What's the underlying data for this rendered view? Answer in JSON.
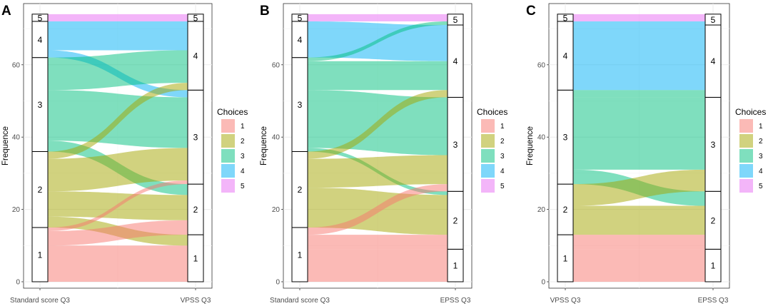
{
  "colors": {
    "1": "#F8766D",
    "2": "#A3A500",
    "3": "#00BF7D",
    "4": "#00B0F6",
    "5": "#E76BF3"
  },
  "legend": {
    "title": "Choices",
    "items": [
      "1",
      "2",
      "3",
      "4",
      "5"
    ]
  },
  "chart_data": [
    {
      "type": "alluvial",
      "panel": "A",
      "ylabel": "Frequence",
      "ylim": [
        0,
        74
      ],
      "yticks": [
        0,
        20,
        40,
        60
      ],
      "axes": [
        "Standard score Q3",
        "VPSS Q3"
      ],
      "categories": [
        "1",
        "2",
        "3",
        "4",
        "5"
      ],
      "strata": [
        {
          "labels": [
            "1",
            "2",
            "3",
            "4",
            "5"
          ],
          "counts": [
            15,
            21,
            26,
            10,
            2
          ]
        },
        {
          "labels": [
            "1",
            "2",
            "3",
            "4",
            "5"
          ],
          "counts": [
            13,
            14,
            26,
            19,
            2
          ]
        }
      ],
      "flows": [
        {
          "from": "1",
          "to": "1",
          "fill": "1",
          "value": 10
        },
        {
          "from": "1",
          "to": "2",
          "fill": "1",
          "value": 4
        },
        {
          "from": "1",
          "to": "3",
          "fill": "1",
          "value": 1
        },
        {
          "from": "2",
          "to": "1",
          "fill": "2",
          "value": 3
        },
        {
          "from": "2",
          "to": "2",
          "fill": "2",
          "value": 7
        },
        {
          "from": "2",
          "to": "3",
          "fill": "2",
          "value": 9
        },
        {
          "from": "2",
          "to": "4",
          "fill": "2",
          "value": 2
        },
        {
          "from": "3",
          "to": "2",
          "fill": "3",
          "value": 3
        },
        {
          "from": "3",
          "to": "3",
          "fill": "3",
          "value": 14
        },
        {
          "from": "3",
          "to": "4",
          "fill": "3",
          "value": 9
        },
        {
          "from": "4",
          "to": "3",
          "fill": "4",
          "value": 2
        },
        {
          "from": "4",
          "to": "4",
          "fill": "4",
          "value": 8
        },
        {
          "from": "5",
          "to": "5",
          "fill": "5",
          "value": 2
        }
      ]
    },
    {
      "type": "alluvial",
      "panel": "B",
      "ylabel": "Frequence",
      "ylim": [
        0,
        74
      ],
      "yticks": [
        0,
        20,
        40,
        60
      ],
      "axes": [
        "Standard score Q3",
        "EPSS Q3"
      ],
      "categories": [
        "1",
        "2",
        "3",
        "4",
        "5"
      ],
      "strata": [
        {
          "labels": [
            "1",
            "2",
            "3",
            "4",
            "5"
          ],
          "counts": [
            15,
            21,
            26,
            10,
            2
          ]
        },
        {
          "labels": [
            "1",
            "2",
            "3",
            "4",
            "5"
          ],
          "counts": [
            9,
            16,
            26,
            20,
            3
          ]
        }
      ],
      "flows": [
        {
          "from": "1",
          "to": "1",
          "fill": "1",
          "value": 9
        },
        {
          "from": "1",
          "to": "2",
          "fill": "1",
          "value": 4
        },
        {
          "from": "1",
          "to": "3",
          "fill": "1",
          "value": 2
        },
        {
          "from": "2",
          "to": "2",
          "fill": "2",
          "value": 11
        },
        {
          "from": "2",
          "to": "3",
          "fill": "2",
          "value": 8
        },
        {
          "from": "2",
          "to": "4",
          "fill": "2",
          "value": 2
        },
        {
          "from": "3",
          "to": "2",
          "fill": "3",
          "value": 1
        },
        {
          "from": "3",
          "to": "3",
          "fill": "3",
          "value": 16
        },
        {
          "from": "3",
          "to": "4",
          "fill": "3",
          "value": 8
        },
        {
          "from": "3",
          "to": "5",
          "fill": "3",
          "value": 1
        },
        {
          "from": "4",
          "to": "4",
          "fill": "4",
          "value": 10
        },
        {
          "from": "5",
          "to": "5",
          "fill": "5",
          "value": 2
        }
      ]
    },
    {
      "type": "alluvial",
      "panel": "C",
      "ylabel": "Frequence",
      "ylim": [
        0,
        74
      ],
      "yticks": [
        0,
        20,
        40,
        60
      ],
      "axes": [
        "VPSS Q3",
        "EPSS Q3"
      ],
      "categories": [
        "1",
        "2",
        "3",
        "4",
        "5"
      ],
      "strata": [
        {
          "labels": [
            "1",
            "2",
            "3",
            "4",
            "5"
          ],
          "counts": [
            13,
            14,
            26,
            19,
            2
          ]
        },
        {
          "labels": [
            "1",
            "2",
            "3",
            "4",
            "5"
          ],
          "counts": [
            9,
            16,
            26,
            20,
            3
          ]
        }
      ],
      "flows": [
        {
          "from": "1",
          "to": "1",
          "fill": "1",
          "value": 9
        },
        {
          "from": "1",
          "to": "2",
          "fill": "1",
          "value": 4
        },
        {
          "from": "2",
          "to": "2",
          "fill": "2",
          "value": 8
        },
        {
          "from": "2",
          "to": "3",
          "fill": "2",
          "value": 6
        },
        {
          "from": "3",
          "to": "2",
          "fill": "3",
          "value": 4
        },
        {
          "from": "3",
          "to": "3",
          "fill": "3",
          "value": 20
        },
        {
          "from": "3",
          "to": "4",
          "fill": "3",
          "value": 2
        },
        {
          "from": "4",
          "to": "4",
          "fill": "4",
          "value": 18
        },
        {
          "from": "4",
          "to": "5",
          "fill": "4",
          "value": 1
        },
        {
          "from": "5",
          "to": "5",
          "fill": "5",
          "value": 2
        }
      ]
    }
  ]
}
